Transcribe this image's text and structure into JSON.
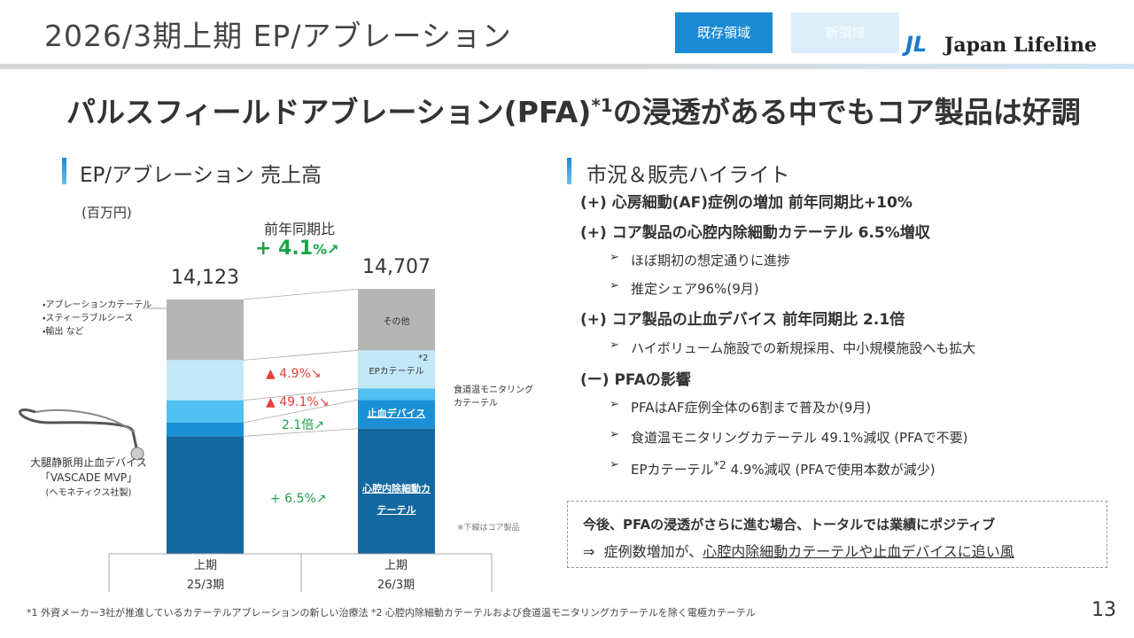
{
  "header": {
    "title": "2026/3期上期 EP/アブレーション",
    "tabs": [
      "既存領域",
      "新領域"
    ],
    "logo_mark": "JL",
    "logo_text": "Japan Lifeline"
  },
  "headline": {
    "before": "パルスフィールドアブレーション(PFA)",
    "sup": "*1",
    "after": "の浸透がある中でもコア製品は好調"
  },
  "left_section": {
    "title": "EP/アブレーション 売上高"
  },
  "chart_data": {
    "type": "stacked_bar",
    "unit": "(百万円)",
    "categories": [
      "上期",
      "上期"
    ],
    "periods": [
      "25/3期",
      "26/3期"
    ],
    "totals": [
      14123,
      14707
    ],
    "total_labels": [
      "14,123",
      "14,707"
    ],
    "series": [
      {
        "name": "心腔内除細動カテーテル",
        "color": "#13689f",
        "values": [
          6530,
          6954
        ],
        "core": true
      },
      {
        "name": "止血デバイス",
        "color": "#1a90d6",
        "values": [
          760,
          1596
        ],
        "core": true
      },
      {
        "name": "食道温モニタリングカテーテル",
        "color": "#4fc0ef",
        "values": [
          1240,
          631
        ]
      },
      {
        "name": "EPカテーテル",
        "color": "#c2e8f8",
        "values": [
          2230,
          2121
        ],
        "note": "*2"
      },
      {
        "name": "その他",
        "color": "#b5b5b5",
        "values": [
          3363,
          3405
        ]
      }
    ],
    "growth_title": "前年同期比",
    "growth_value": "+ 4.1",
    "growth_suffix": "%↗",
    "change_labels": [
      "+ 6.5%↗",
      "2.1倍↗",
      "▲ 49.1%↘",
      "▲ 4.9%↘"
    ],
    "other_breakdown": [
      "アブレーションカテーテル",
      "スティーラブルシース",
      "輸出 など"
    ],
    "device_caption": [
      "大腿静脈用止血デバイス",
      "「VASCADE MVP」",
      "(ヘモネティクス社製)"
    ],
    "core_note": "※下線はコア製品"
  },
  "right_section": {
    "title": "市況＆販売ハイライト",
    "items": [
      {
        "level": 1,
        "text": "(+) 心房細動(AF)症例の増加 前年同期比+10%"
      },
      {
        "level": 1,
        "text": "(+) コア製品の心腔内除細動カテーテル 6.5%増収"
      },
      {
        "level": 2,
        "text": "ほぼ期初の想定通りに進捗"
      },
      {
        "level": 2,
        "text": "推定シェア96%(9月)"
      },
      {
        "level": 1,
        "text": "(+) コア製品の止血デバイス 前年同期比 2.1倍"
      },
      {
        "level": 2,
        "text": "ハイボリューム施設での新規採用、中小規模施設へも拡大"
      },
      {
        "level": 1,
        "text": "(ー) PFAの影響"
      },
      {
        "level": 2,
        "text": "PFAはAF症例全体の6割まで普及か(9月)"
      },
      {
        "level": 2,
        "text": "食道温モニタリングカテーテル 49.1%減収 (PFAで不要)"
      },
      {
        "level": 2,
        "text": "EPカテーテル",
        "sup": "*2",
        "rest": " 4.9%減収 (PFAで使用本数が減少)"
      }
    ]
  },
  "outlook": {
    "line1": "今後、PFAの浸透がさらに進む場合、トータルでは業績にポジティブ",
    "arrow": "⇒",
    "line2_plain": "症例数増加が、",
    "line2_underlined": "心腔内除細動カテーテルや止血デバイスに追い風"
  },
  "footnote": "*1 外資メーカー3社が推進しているカテーテルアブレーションの新しい治療法 *2 心腔内除細動カテーテルおよび食道温モニタリングカテーテルを除く電極カテーテル",
  "page_number": "13"
}
